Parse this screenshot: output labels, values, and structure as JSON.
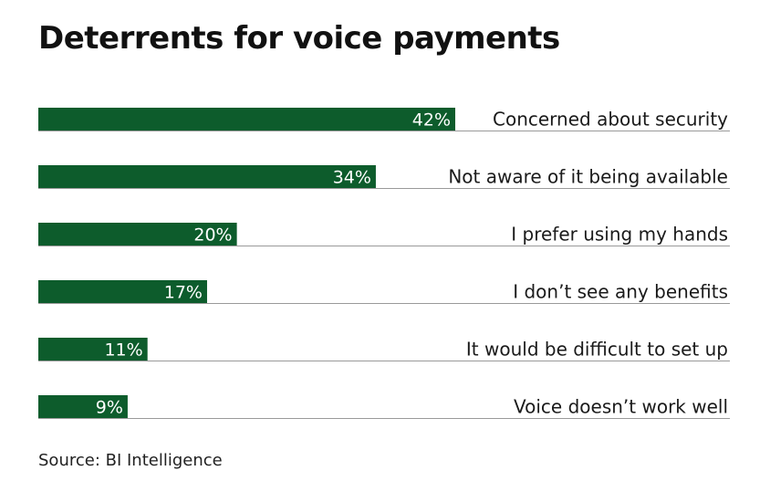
{
  "title": "Deterrents for voice payments",
  "source": "Source: BI Intelligence",
  "colors": {
    "bar": "#0d5c2c",
    "bar_label": "#ffffff",
    "baseline": "#9a9a9a",
    "text": "#1a1a1a"
  },
  "chart_data": {
    "type": "bar",
    "orientation": "horizontal",
    "title": "Deterrents for voice payments",
    "categories": [
      "Concerned about security",
      "Not aware of it being available",
      "I prefer using my hands",
      "I don’t see any benefits",
      "It would be difficult to set up",
      "Voice doesn’t work well"
    ],
    "values": [
      42,
      34,
      20,
      17,
      11,
      9
    ],
    "value_labels": [
      "42%",
      "34%",
      "20%",
      "17%",
      "11%",
      "9%"
    ],
    "unit": "%",
    "xlim": [
      0,
      100
    ],
    "grid": false,
    "legend": "none"
  }
}
